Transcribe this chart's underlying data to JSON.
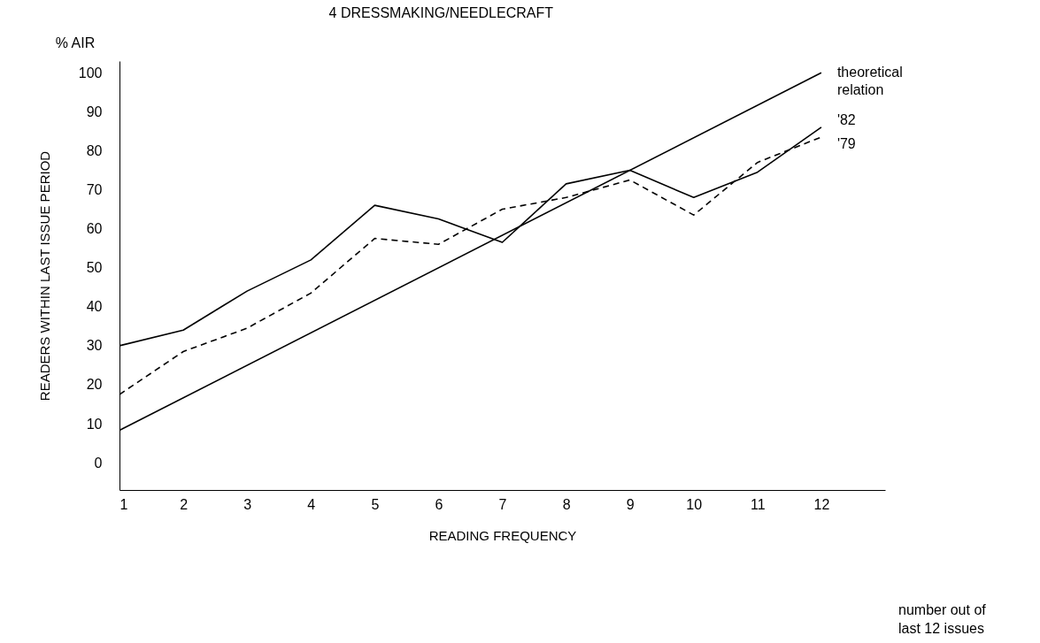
{
  "chart_data": {
    "type": "line",
    "title": "4 DRESSMAKING/NEEDLECRAFT",
    "xlabel": "READING FREQUENCY",
    "ylabel": "READERS WITHIN LAST ISSUE PERIOD",
    "annotations": [
      "% AIR",
      "number out of last 12 issues"
    ],
    "x": [
      1,
      2,
      3,
      4,
      5,
      6,
      7,
      8,
      9,
      10,
      11,
      12
    ],
    "xlim": [
      1,
      13
    ],
    "xticks": [
      1,
      2,
      3,
      4,
      5,
      6,
      7,
      8,
      9,
      10,
      11,
      12
    ],
    "ylim": [
      -7,
      103
    ],
    "yticks": [
      0,
      10,
      20,
      30,
      40,
      50,
      60,
      70,
      80,
      90,
      100
    ],
    "grid": false,
    "legend": false,
    "series": [
      {
        "name": "theoretical relation",
        "color": "#000000",
        "line_style": "solid",
        "x": [
          1,
          12
        ],
        "values": [
          8.3,
          100
        ]
      },
      {
        "name": "'82",
        "color": "#000000",
        "line_style": "solid",
        "values": [
          30,
          34,
          44,
          52,
          66,
          62.5,
          56.5,
          71.5,
          75,
          68,
          74.5,
          86
        ]
      },
      {
        "name": "'79",
        "color": "#000000",
        "line_style": "dashed",
        "values": [
          17.5,
          28.5,
          34.5,
          43.5,
          57.5,
          56,
          65,
          68,
          72.5,
          63.5,
          77,
          83.5
        ]
      }
    ]
  }
}
